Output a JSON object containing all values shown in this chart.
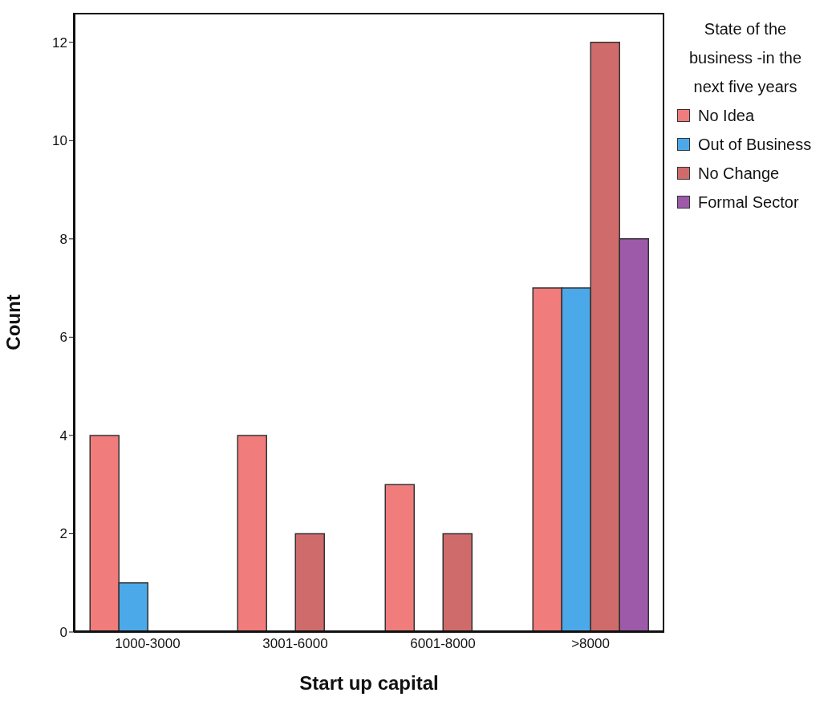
{
  "chart_data": {
    "type": "bar",
    "xlabel": "Start up capital",
    "ylabel": "Count",
    "legend_title": "State of the business -in the next five years",
    "categories": [
      "1000-3000",
      "3001-6000",
      "6001-8000",
      ">8000"
    ],
    "series": [
      {
        "name": "No Idea",
        "color": "#f07c7c",
        "values": [
          4,
          4,
          3,
          7
        ]
      },
      {
        "name": "Out of Business",
        "color": "#4ca9e9",
        "values": [
          1,
          0,
          0,
          7
        ]
      },
      {
        "name": "No Change",
        "color": "#d06b6b",
        "values": [
          0,
          2,
          2,
          12
        ]
      },
      {
        "name": "Formal Sector",
        "color": "#9c5aa8",
        "values": [
          0,
          0,
          0,
          8
        ]
      }
    ],
    "ylim": [
      0,
      12.6
    ],
    "yticks": [
      0,
      2,
      4,
      6,
      8,
      10,
      12
    ],
    "grid": false,
    "legend": "top right"
  }
}
